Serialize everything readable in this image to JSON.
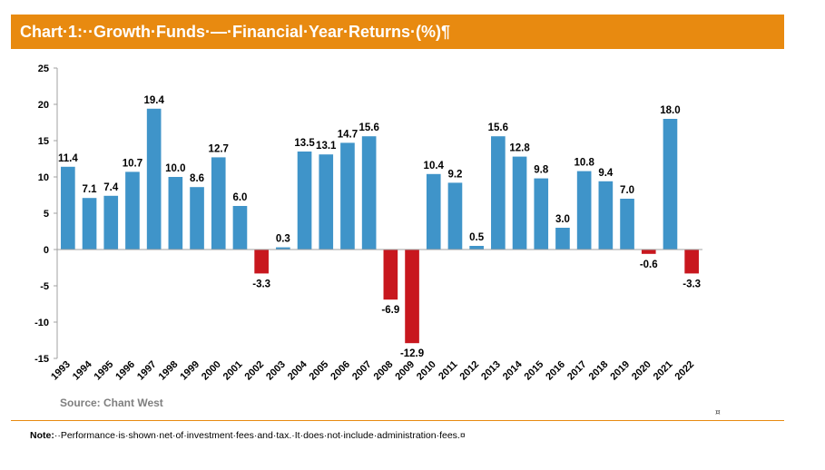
{
  "header": {
    "title": "Chart·1:··Growth·Funds·—·Financial·Year·Returns·(%)¶"
  },
  "source": "Source: Chant West",
  "note": {
    "label": "Note:",
    "text": "··Performance·is·shown·net·of·investment·fees·and·tax.·It·does·not·include·administration·fees.¤"
  },
  "end_mark": "¤",
  "colors": {
    "header": "#e88a10",
    "positive": "#3f94c9",
    "negative": "#c8171e"
  },
  "chart_data": {
    "type": "bar",
    "title": "Growth Funds — Financial Year Returns (%)",
    "xlabel": "",
    "ylabel": "",
    "ylim": [
      -15,
      25
    ],
    "yticks": [
      25,
      20,
      15,
      10,
      5,
      0,
      -5,
      -10,
      -15
    ],
    "ytick_labels": [
      "25",
      "20",
      "15",
      "10",
      "5",
      "0",
      "-5",
      "-10",
      "-15"
    ],
    "categories": [
      "1993",
      "1994",
      "1995",
      "1996",
      "1997",
      "1998",
      "1999",
      "2000",
      "2001",
      "2002",
      "2003",
      "2004",
      "2005",
      "2006",
      "2007",
      "2008",
      "2009",
      "2010",
      "2011",
      "2012",
      "2013",
      "2014",
      "2015",
      "2016",
      "2017",
      "2018",
      "2019",
      "2020",
      "2021",
      "2022"
    ],
    "values": [
      11.4,
      7.1,
      7.4,
      10.7,
      19.4,
      10.0,
      8.6,
      12.7,
      6.0,
      -3.3,
      0.3,
      13.5,
      13.1,
      14.7,
      15.6,
      -6.9,
      -12.9,
      10.4,
      9.2,
      0.5,
      15.6,
      12.8,
      9.8,
      3.0,
      10.8,
      9.4,
      7.0,
      -0.6,
      18.0,
      -3.3
    ],
    "labels": [
      "11.4",
      "7.1",
      "7.4",
      "10.7",
      "19.4",
      "10.0",
      "8.6",
      "12.7",
      "6.0",
      "-3.3",
      "0.3",
      "13.5",
      "13.1",
      "14.7",
      "15.6",
      "-6.9",
      "-12.9",
      "10.4",
      "9.2",
      "0.5",
      "15.6",
      "12.8",
      "9.8",
      "3.0",
      "10.8",
      "9.4",
      "7.0",
      "-0.6",
      "18.0",
      "-3.3"
    ],
    "grid": false,
    "legend": "none"
  }
}
